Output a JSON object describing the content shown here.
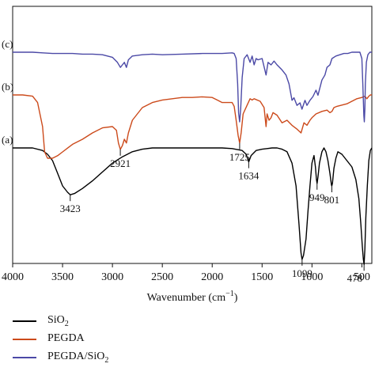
{
  "chart_data": {
    "type": "line",
    "xlabel_main": "Wavenumber (cm",
    "xlabel_sup": "−1",
    "xlabel_close": ")",
    "xlim": [
      4000,
      400
    ],
    "x_ticks": [
      4000,
      3500,
      3000,
      2500,
      2000,
      1500,
      1000,
      500
    ],
    "y_ticks_shown": false,
    "series": [
      {
        "name": "SiO2",
        "label_main": "SiO",
        "label_sub": "2",
        "curve_label": "(a)",
        "color": "#000000",
        "x": [
          4000,
          3900,
          3800,
          3700,
          3650,
          3600,
          3550,
          3500,
          3450,
          3423,
          3380,
          3300,
          3200,
          3100,
          3000,
          2900,
          2800,
          2700,
          2600,
          2500,
          2400,
          2200,
          2000,
          1900,
          1800,
          1700,
          1660,
          1634,
          1610,
          1560,
          1500,
          1450,
          1400,
          1350,
          1300,
          1250,
          1200,
          1160,
          1130,
          1110,
          1099,
          1085,
          1060,
          1040,
          1020,
          1000,
          980,
          965,
          955,
          949,
          940,
          925,
          900,
          880,
          860,
          840,
          820,
          805,
          801,
          795,
          780,
          760,
          740,
          700,
          650,
          600,
          560,
          530,
          510,
          495,
          485,
          478,
          470,
          460,
          445,
          430,
          415,
          400
        ],
        "y": [
          0.0,
          0.0,
          0.0,
          -0.02,
          -0.05,
          -0.1,
          -0.2,
          -0.3,
          -0.35,
          -0.37,
          -0.36,
          -0.32,
          -0.26,
          -0.19,
          -0.12,
          -0.07,
          -0.03,
          -0.01,
          0.0,
          0.0,
          0.0,
          0.0,
          0.0,
          0.0,
          -0.005,
          -0.02,
          -0.05,
          -0.11,
          -0.06,
          -0.02,
          -0.01,
          -0.005,
          0.0,
          0.0,
          -0.01,
          -0.03,
          -0.12,
          -0.3,
          -0.6,
          -0.83,
          -0.88,
          -0.85,
          -0.72,
          -0.5,
          -0.3,
          -0.12,
          -0.06,
          -0.15,
          -0.25,
          -0.28,
          -0.23,
          -0.12,
          -0.03,
          0.0,
          -0.03,
          -0.1,
          -0.2,
          -0.29,
          -0.3,
          -0.28,
          -0.16,
          -0.08,
          -0.03,
          -0.05,
          -0.1,
          -0.15,
          -0.25,
          -0.4,
          -0.6,
          -0.78,
          -0.88,
          -0.92,
          -0.8,
          -0.55,
          -0.3,
          -0.1,
          -0.02,
          0.0
        ]
      },
      {
        "name": "PEGDA",
        "label_main": "PEGDA",
        "label_sub": "",
        "curve_label": "(b)",
        "color": "#cc4a1b",
        "x": [
          4000,
          3900,
          3800,
          3750,
          3700,
          3680,
          3650,
          3600,
          3550,
          3500,
          3450,
          3400,
          3300,
          3200,
          3100,
          3000,
          2960,
          2940,
          2921,
          2900,
          2880,
          2860,
          2840,
          2800,
          2700,
          2600,
          2500,
          2400,
          2300,
          2200,
          2100,
          2000,
          1950,
          1900,
          1850,
          1800,
          1780,
          1760,
          1740,
          1725,
          1710,
          1690,
          1650,
          1620,
          1600,
          1580,
          1520,
          1480,
          1460,
          1450,
          1430,
          1410,
          1390,
          1350,
          1300,
          1250,
          1200,
          1150,
          1110,
          1080,
          1050,
          1020,
          1000,
          960,
          900,
          850,
          820,
          800,
          780,
          750,
          700,
          650,
          600,
          550,
          500,
          470,
          460,
          450,
          440,
          430,
          415,
          400
        ],
        "y": [
          0.0,
          0.0,
          -0.01,
          -0.06,
          -0.25,
          -0.45,
          -0.5,
          -0.5,
          -0.48,
          -0.45,
          -0.42,
          -0.39,
          -0.35,
          -0.3,
          -0.26,
          -0.25,
          -0.28,
          -0.38,
          -0.43,
          -0.4,
          -0.35,
          -0.38,
          -0.3,
          -0.2,
          -0.1,
          -0.06,
          -0.04,
          -0.03,
          -0.02,
          -0.02,
          -0.015,
          -0.02,
          -0.04,
          -0.06,
          -0.06,
          -0.06,
          -0.09,
          -0.2,
          -0.32,
          -0.38,
          -0.3,
          -0.15,
          -0.08,
          -0.03,
          -0.04,
          -0.03,
          -0.05,
          -0.1,
          -0.25,
          -0.15,
          -0.2,
          -0.18,
          -0.14,
          -0.16,
          -0.22,
          -0.2,
          -0.24,
          -0.27,
          -0.3,
          -0.22,
          -0.24,
          -0.2,
          -0.18,
          -0.15,
          -0.13,
          -0.12,
          -0.14,
          -0.13,
          -0.1,
          -0.09,
          -0.08,
          -0.07,
          -0.05,
          -0.03,
          -0.02,
          -0.01,
          -0.02,
          -0.03,
          -0.02,
          -0.01,
          0.0,
          0.0
        ]
      },
      {
        "name": "PEGDA/SiO2",
        "label_main": "PEGDA/SiO",
        "label_sub": "2",
        "curve_label": "(c)",
        "color": "#4b49a6",
        "x": [
          4000,
          3900,
          3800,
          3700,
          3600,
          3500,
          3400,
          3300,
          3200,
          3100,
          3000,
          2950,
          2920,
          2900,
          2880,
          2860,
          2840,
          2800,
          2700,
          2600,
          2500,
          2300,
          2100,
          1900,
          1800,
          1780,
          1760,
          1745,
          1735,
          1725,
          1715,
          1700,
          1680,
          1650,
          1620,
          1600,
          1580,
          1560,
          1540,
          1500,
          1460,
          1440,
          1410,
          1380,
          1350,
          1300,
          1260,
          1230,
          1200,
          1180,
          1150,
          1120,
          1100,
          1070,
          1050,
          1020,
          990,
          960,
          940,
          920,
          900,
          870,
          850,
          820,
          800,
          760,
          720,
          680,
          640,
          600,
          560,
          520,
          500,
          490,
          480,
          475,
          470,
          465,
          455,
          440,
          420,
          400
        ],
        "y": [
          0.0,
          0.0,
          0.0,
          -0.005,
          -0.01,
          -0.01,
          -0.01,
          -0.015,
          -0.015,
          -0.02,
          -0.04,
          -0.08,
          -0.12,
          -0.1,
          -0.08,
          -0.12,
          -0.06,
          -0.03,
          -0.02,
          -0.015,
          -0.02,
          -0.015,
          -0.01,
          -0.01,
          -0.005,
          -0.01,
          -0.05,
          -0.25,
          -0.48,
          -0.55,
          -0.45,
          -0.2,
          -0.05,
          -0.02,
          -0.08,
          -0.03,
          -0.1,
          -0.05,
          -0.06,
          -0.05,
          -0.18,
          -0.08,
          -0.1,
          -0.07,
          -0.1,
          -0.14,
          -0.18,
          -0.25,
          -0.38,
          -0.36,
          -0.42,
          -0.4,
          -0.45,
          -0.38,
          -0.42,
          -0.38,
          -0.35,
          -0.3,
          -0.34,
          -0.28,
          -0.22,
          -0.18,
          -0.12,
          -0.1,
          -0.05,
          -0.03,
          -0.02,
          -0.01,
          -0.01,
          0.0,
          0.0,
          0.0,
          -0.05,
          -0.25,
          -0.5,
          -0.55,
          -0.45,
          -0.25,
          -0.08,
          -0.02,
          0.0,
          0.0
        ]
      }
    ],
    "annotations": [
      {
        "series": 0,
        "x": 3423,
        "text": "3423"
      },
      {
        "series": 0,
        "x": 1634,
        "text": "1634"
      },
      {
        "series": 0,
        "x": 1099,
        "text": "1099"
      },
      {
        "series": 0,
        "x": 949,
        "text": "949"
      },
      {
        "series": 0,
        "x": 801,
        "text": "801"
      },
      {
        "series": 0,
        "x": 478,
        "text": "478"
      },
      {
        "series": 1,
        "x": 2921,
        "text": "2921"
      },
      {
        "series": 1,
        "x": 1725,
        "text": "1725"
      }
    ]
  }
}
